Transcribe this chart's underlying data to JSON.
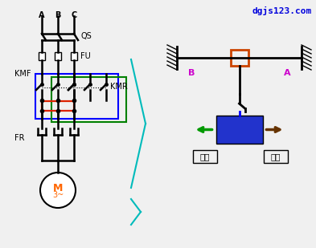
{
  "bg_color": "#f0f0f0",
  "title_color": "#0000dd",
  "title_text": "dgjs123.com",
  "wire_color_blue": "#0000ff",
  "wire_color_green": "#008000",
  "wire_color_red": "#dd2200",
  "wire_color_black": "#000000",
  "wire_color_cyan": "#00bbbb",
  "motor_color": "#ff6600",
  "label_A": "A",
  "label_B": "B",
  "label_C": "C",
  "label_QS": "QS",
  "label_FU": "FU",
  "label_KMF": "KMF",
  "label_KMR": "KMR",
  "label_FR": "FR",
  "label_M": "M",
  "label_3": "3~",
  "label_niche": "逆程",
  "label_forward": "正程",
  "box_color_orange": "#cc4400",
  "box_color_blue": "#2233cc",
  "arrow_green": "#009900",
  "arrow_brown": "#663300",
  "label_B_right": "B",
  "label_A_right": "A",
  "magenta": "#cc00cc"
}
